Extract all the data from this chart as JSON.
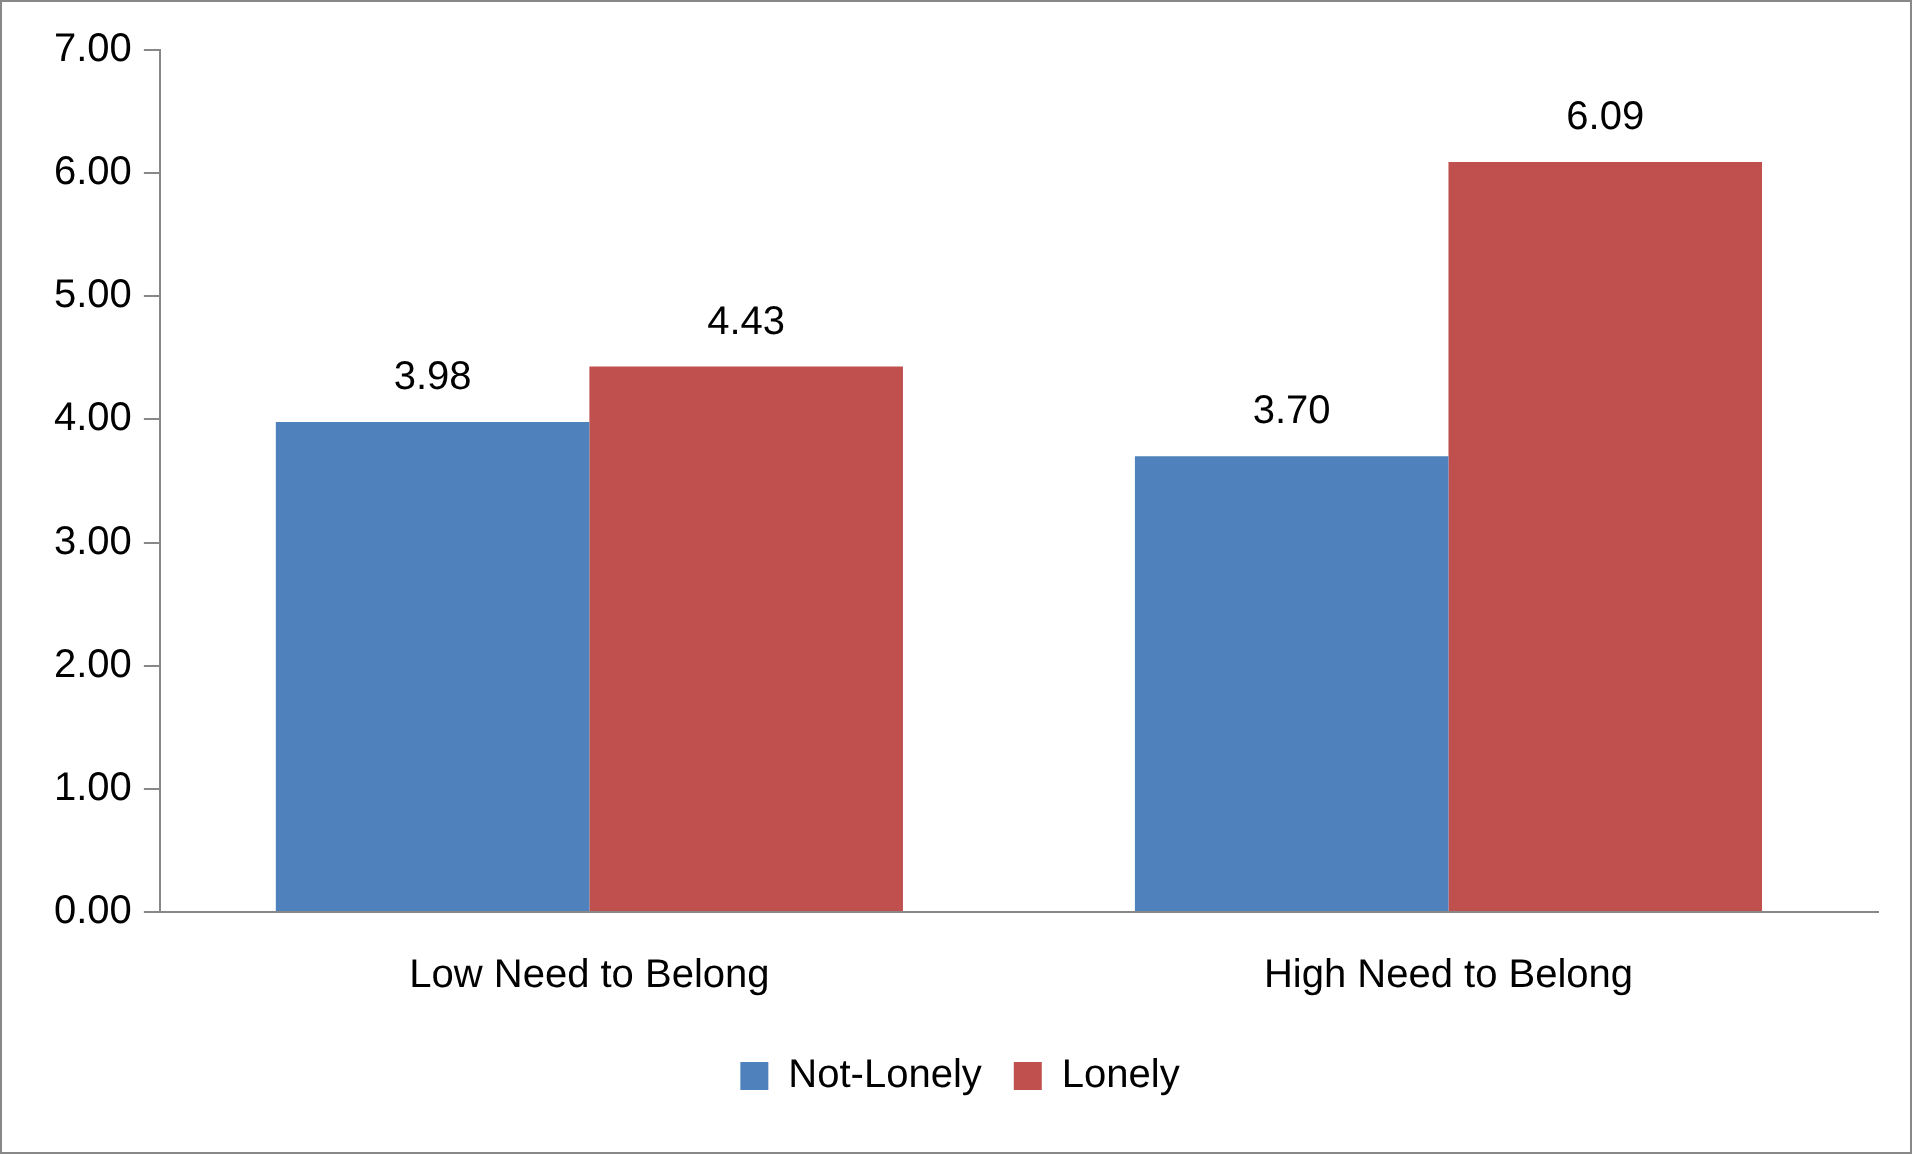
{
  "chart_data": {
    "type": "bar",
    "categories": [
      "Low Need to Belong",
      "High Need to Belong"
    ],
    "series": [
      {
        "name": "Not-Lonely",
        "color": "#4f81bd",
        "values": [
          3.98,
          3.7
        ],
        "value_labels": [
          "3.98",
          "3.70"
        ]
      },
      {
        "name": "Lonely",
        "color": "#c0504d",
        "values": [
          4.43,
          6.09
        ],
        "value_labels": [
          "4.43",
          "6.09"
        ]
      }
    ],
    "ylim": [
      0,
      7
    ],
    "yticks": [
      {
        "value": 0,
        "label": "0.00"
      },
      {
        "value": 1,
        "label": "1.00"
      },
      {
        "value": 2,
        "label": "2.00"
      },
      {
        "value": 3,
        "label": "3.00"
      },
      {
        "value": 4,
        "label": "4.00"
      },
      {
        "value": 5,
        "label": "5.00"
      },
      {
        "value": 6,
        "label": "6.00"
      },
      {
        "value": 7,
        "label": "7.00"
      }
    ],
    "grid": false,
    "legend": "bottom"
  }
}
